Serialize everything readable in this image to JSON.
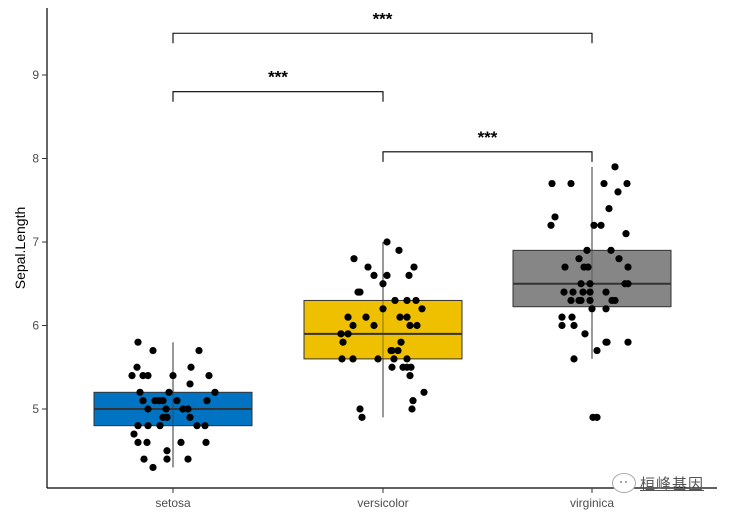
{
  "chart_data": {
    "type": "boxplot",
    "title": "",
    "xlabel": "",
    "ylabel": "Sepal.Length",
    "ylim": [
      4.05,
      9.8
    ],
    "yticks": [
      5,
      6,
      7,
      8,
      9
    ],
    "grid": false,
    "legend": "none",
    "categories": [
      "setosa",
      "versicolor",
      "virginica"
    ],
    "boxes": [
      {
        "name": "setosa",
        "color": "#0073C2",
        "q1": 4.8,
        "median": 5.0,
        "q3": 5.2,
        "whisker_low": 4.3,
        "whisker_high": 5.8,
        "outliers": []
      },
      {
        "name": "versicolor",
        "color": "#EFC000",
        "q1": 5.6,
        "median": 5.9,
        "q3": 6.3,
        "whisker_low": 4.9,
        "whisker_high": 7.0,
        "outliers": []
      },
      {
        "name": "virginica",
        "color": "#868686",
        "q1": 6.225,
        "median": 6.5,
        "q3": 6.9,
        "whisker_low": 5.6,
        "whisker_high": 7.9,
        "outliers": [
          4.9
        ]
      }
    ],
    "points": {
      "setosa": [
        [
          -35,
          5.8
        ],
        [
          -20,
          5.7
        ],
        [
          26,
          5.7
        ],
        [
          -36,
          5.5
        ],
        [
          -41,
          5.4
        ],
        [
          -30,
          5.4
        ],
        [
          -25,
          5.4
        ],
        [
          18,
          5.5
        ],
        [
          36,
          5.4
        ],
        [
          0,
          5.4
        ],
        [
          17,
          5.3
        ],
        [
          42,
          5.2
        ],
        [
          -33,
          5.2
        ],
        [
          -4,
          5.2
        ],
        [
          34,
          5.1
        ],
        [
          -30,
          5.1
        ],
        [
          -18,
          5.1
        ],
        [
          -14,
          5.1
        ],
        [
          -10,
          5.1
        ],
        [
          4,
          5.1
        ],
        [
          -25,
          5.0
        ],
        [
          -7,
          5.0
        ],
        [
          10,
          5.0
        ],
        [
          15,
          5.0
        ],
        [
          17,
          4.9
        ],
        [
          -10,
          4.9
        ],
        [
          -6,
          4.9
        ],
        [
          24,
          4.8
        ],
        [
          -35,
          4.8
        ],
        [
          -25,
          4.8
        ],
        [
          -13,
          4.8
        ],
        [
          32,
          4.8
        ],
        [
          -39,
          4.7
        ],
        [
          33,
          4.6
        ],
        [
          -35,
          4.6
        ],
        [
          -26,
          4.6
        ],
        [
          8,
          4.6
        ],
        [
          -6,
          4.5
        ],
        [
          15,
          4.4
        ],
        [
          -29,
          4.4
        ],
        [
          -20,
          4.3
        ],
        [
          -6,
          4.4
        ]
      ],
      "versicolor": [
        [
          4,
          7.0
        ],
        [
          16,
          6.9
        ],
        [
          -29,
          6.8
        ],
        [
          -15,
          6.7
        ],
        [
          -9,
          6.6
        ],
        [
          31,
          6.7
        ],
        [
          26,
          6.6
        ],
        [
          4,
          6.6
        ],
        [
          0,
          6.5
        ],
        [
          -25,
          6.4
        ],
        [
          -23,
          6.4
        ],
        [
          12,
          6.3
        ],
        [
          24,
          6.3
        ],
        [
          33,
          6.3
        ],
        [
          0,
          6.2
        ],
        [
          39,
          6.2
        ],
        [
          17,
          6.1
        ],
        [
          24,
          6.1
        ],
        [
          27,
          6.0
        ],
        [
          34,
          6.0
        ],
        [
          -17,
          6.1
        ],
        [
          -35,
          6.1
        ],
        [
          -30,
          6.0
        ],
        [
          -9,
          6.0
        ],
        [
          -42,
          5.9
        ],
        [
          -35,
          5.9
        ],
        [
          -40,
          5.8
        ],
        [
          18,
          5.8
        ],
        [
          15,
          5.7
        ],
        [
          8,
          5.7
        ],
        [
          11,
          5.6
        ],
        [
          9,
          5.7
        ],
        [
          -41,
          5.6
        ],
        [
          -30,
          5.6
        ],
        [
          -5,
          5.6
        ],
        [
          9,
          5.5
        ],
        [
          24,
          5.6
        ],
        [
          28,
          5.5
        ],
        [
          20,
          5.5
        ],
        [
          24,
          5.5
        ],
        [
          27,
          5.4
        ],
        [
          41,
          5.2
        ],
        [
          30,
          5.1
        ],
        [
          29,
          5.0
        ],
        [
          -23,
          5.0
        ],
        [
          -21,
          4.9
        ]
      ],
      "virginica": [
        [
          23,
          7.9
        ],
        [
          -40,
          7.7
        ],
        [
          -21,
          7.7
        ],
        [
          12,
          7.7
        ],
        [
          35,
          7.7
        ],
        [
          26,
          7.6
        ],
        [
          17,
          7.4
        ],
        [
          -37,
          7.3
        ],
        [
          -41,
          7.2
        ],
        [
          2,
          7.2
        ],
        [
          9,
          7.2
        ],
        [
          34,
          7.1
        ],
        [
          19,
          6.9
        ],
        [
          -5,
          6.9
        ],
        [
          -13,
          6.8
        ],
        [
          27,
          6.8
        ],
        [
          -27,
          6.7
        ],
        [
          -8,
          6.7
        ],
        [
          -4,
          6.7
        ],
        [
          36,
          6.7
        ],
        [
          -11,
          6.5
        ],
        [
          -2,
          6.5
        ],
        [
          33,
          6.5
        ],
        [
          36,
          6.5
        ],
        [
          -2,
          6.4
        ],
        [
          -28,
          6.4
        ],
        [
          -19,
          6.4
        ],
        [
          -9,
          6.4
        ],
        [
          14,
          6.4
        ],
        [
          -21,
          6.3
        ],
        [
          -11,
          6.3
        ],
        [
          -13,
          6.3
        ],
        [
          -2,
          6.3
        ],
        [
          23,
          6.3
        ],
        [
          20,
          6.3
        ],
        [
          0,
          6.2
        ],
        [
          14,
          6.2
        ],
        [
          -30,
          6.1
        ],
        [
          -20,
          6.1
        ],
        [
          -30,
          6.0
        ],
        [
          -18,
          6.0
        ],
        [
          -7,
          5.9
        ],
        [
          14,
          5.8
        ],
        [
          15,
          5.8
        ],
        [
          36,
          5.8
        ],
        [
          5,
          5.7
        ],
        [
          -18,
          5.6
        ],
        [
          1,
          4.9
        ],
        [
          5,
          4.9
        ]
      ]
    },
    "comparisons": [
      {
        "group1": "setosa",
        "group2": "virginica",
        "label": "***",
        "y": 9.5
      },
      {
        "group1": "setosa",
        "group2": "versicolor",
        "label": "***",
        "y": 8.8
      },
      {
        "group1": "versicolor",
        "group2": "virginica",
        "label": "***",
        "y": 8.08
      }
    ]
  },
  "watermark": {
    "text": "桓峰基因"
  }
}
